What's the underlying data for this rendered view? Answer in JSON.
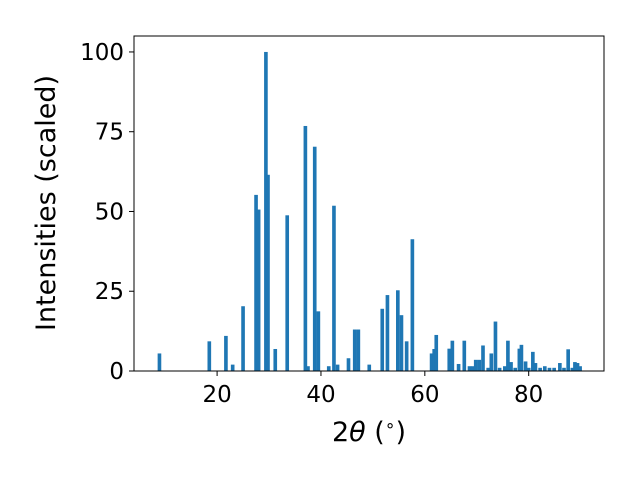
{
  "chart_data": {
    "type": "bar",
    "xlabel_parts": [
      "2",
      "θ",
      " (",
      "∘",
      ")"
    ],
    "ylabel": "Intensities (scaled)",
    "xlim": [
      4.0,
      94.5
    ],
    "ylim": [
      0,
      105
    ],
    "x_ticks": [
      20,
      40,
      60,
      80
    ],
    "y_ticks": [
      0,
      25,
      50,
      75,
      100
    ],
    "grid": false,
    "bar_color": "#1f77b4",
    "bar_width": 0.7,
    "x": [
      8.9,
      18.5,
      21.7,
      23.0,
      25.0,
      27.5,
      28.0,
      29.4,
      29.8,
      31.2,
      33.5,
      37.0,
      37.5,
      38.8,
      39.5,
      41.5,
      42.5,
      43.2,
      45.3,
      46.5,
      47.2,
      49.3,
      51.8,
      52.8,
      54.8,
      55.5,
      56.5,
      57.6,
      61.3,
      61.8,
      62.2,
      64.7,
      65.3,
      66.5,
      67.6,
      68.6,
      69.2,
      69.8,
      70.5,
      71.2,
      72.2,
      72.8,
      73.6,
      74.4,
      75.4,
      76.0,
      76.6,
      77.4,
      78.2,
      78.6,
      79.4,
      80.0,
      80.8,
      81.3,
      82.2,
      83.1,
      84.0,
      84.9,
      86.0,
      86.8,
      87.6,
      88.4,
      88.9,
      89.4,
      89.9
    ],
    "values": [
      5.5,
      9.3,
      11.0,
      2.0,
      20.3,
      55.2,
      50.6,
      100.0,
      61.5,
      6.9,
      48.8,
      76.8,
      1.5,
      70.3,
      18.7,
      1.5,
      51.8,
      2.0,
      4.0,
      13.0,
      13.0,
      2.0,
      19.5,
      23.8,
      25.3,
      17.5,
      9.3,
      41.3,
      5.5,
      6.9,
      11.3,
      7.0,
      9.5,
      2.2,
      9.5,
      1.5,
      1.5,
      3.5,
      3.5,
      8.0,
      1.0,
      5.5,
      15.5,
      1.0,
      1.5,
      9.5,
      2.8,
      1.0,
      7.0,
      8.2,
      3.0,
      1.0,
      6.0,
      2.5,
      1.0,
      1.5,
      1.0,
      1.0,
      2.5,
      1.0,
      6.8,
      1.0,
      2.8,
      2.5,
      1.5
    ]
  }
}
